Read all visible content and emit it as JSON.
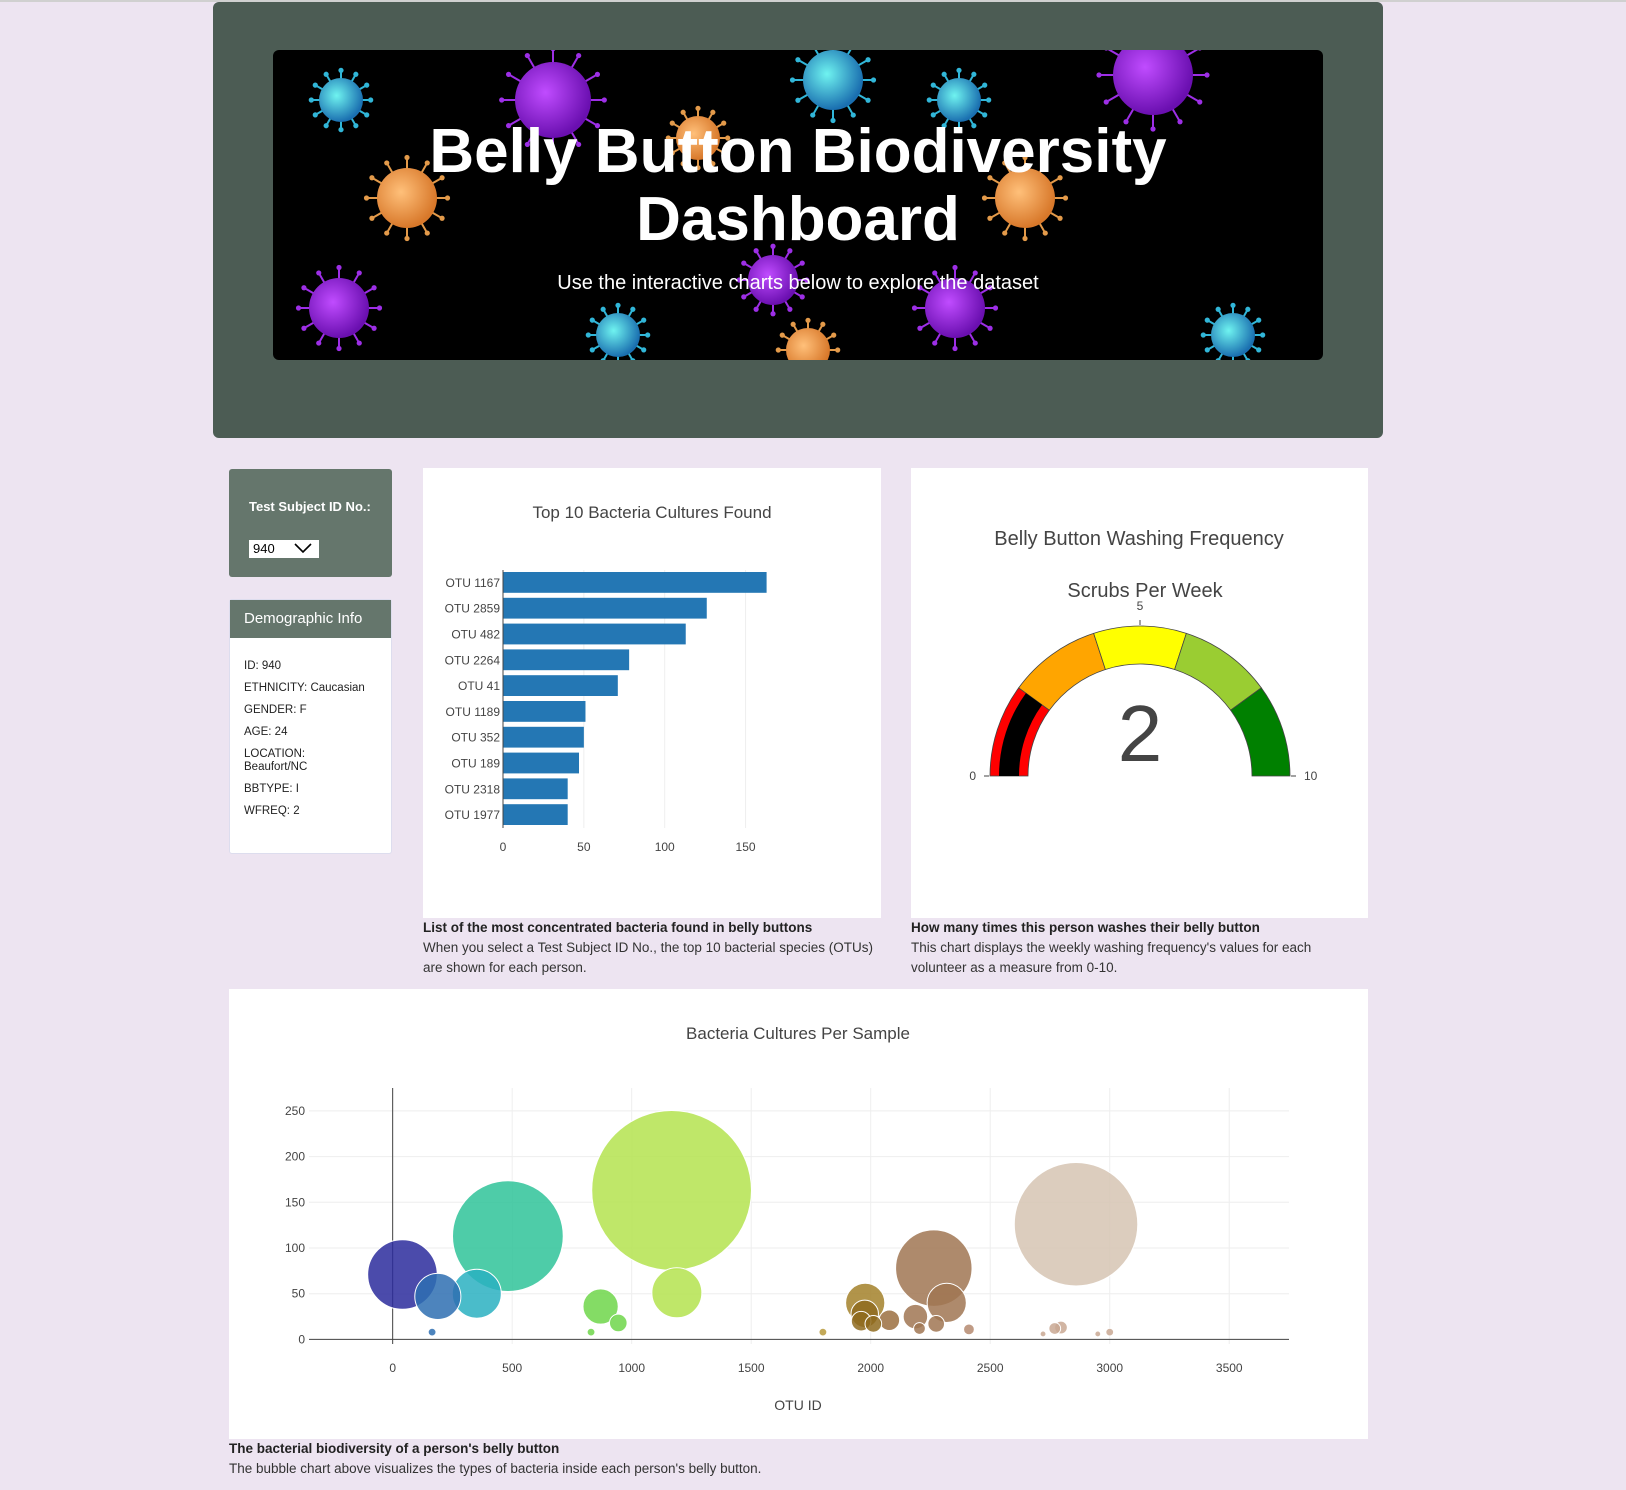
{
  "header": {
    "title_line1": "Belly Button Biodiversity",
    "title_line2": "Dashboard",
    "subtitle": "Use the interactive charts below to explore the dataset"
  },
  "selector": {
    "label": "Test Subject ID No.:",
    "value": "940"
  },
  "demographics": {
    "title": "Demographic Info",
    "lines": [
      "ID: 940",
      "ETHNICITY: Caucasian",
      "GENDER: F",
      "AGE: 24",
      "LOCATION: Beaufort/NC",
      "BBTYPE: I",
      "WFREQ: 2"
    ]
  },
  "bar_caption": {
    "title": "List of the most concentrated bacteria found in belly buttons",
    "text": "When you select a Test Subject ID No., the top 10 bacterial species (OTUs) are shown for each person."
  },
  "gauge_caption": {
    "title": "How many times this person washes their belly button",
    "text": "This chart displays the weekly washing frequency's values for each volunteer as a measure from 0-10."
  },
  "bubble_caption": {
    "title": "The bacterial biodiversity of a person's belly button",
    "text": "The bubble chart above visualizes the types of bacteria inside each person's belly button."
  },
  "colors": {
    "bar": "#2477b4",
    "gauge_steps": [
      "#ff0000",
      "#ffa500",
      "#ffff00",
      "#9acd32",
      "#008000"
    ],
    "gauge_bar": "#000000"
  },
  "chart_data": [
    {
      "type": "bar",
      "orientation": "horizontal",
      "title": "Top 10 Bacteria Cultures Found",
      "categories": [
        "OTU 1167",
        "OTU 2859",
        "OTU 482",
        "OTU 2264",
        "OTU 41",
        "OTU 1189",
        "OTU 352",
        "OTU 189",
        "OTU 2318",
        "OTU 1977"
      ],
      "values": [
        163,
        126,
        113,
        78,
        71,
        51,
        50,
        47,
        40,
        40
      ],
      "xlim": [
        0,
        175
      ],
      "xticks": [
        0,
        50,
        100,
        150
      ],
      "grid": true
    },
    {
      "type": "gauge",
      "title": "Belly Button Washing Frequency",
      "subtitle": "Scrubs Per Week",
      "value": 2,
      "range": [
        0,
        10
      ],
      "tick_labels": [
        "0",
        "5",
        "10"
      ],
      "steps": [
        [
          0,
          2
        ],
        [
          2,
          4
        ],
        [
          4,
          6
        ],
        [
          6,
          8
        ],
        [
          8,
          10
        ]
      ]
    },
    {
      "type": "scatter",
      "title": "Bacteria Cultures Per Sample",
      "xlabel": "OTU ID",
      "xlim": [
        -350,
        3750
      ],
      "ylim": [
        -5,
        275
      ],
      "xticks": [
        0,
        500,
        1000,
        1500,
        2000,
        2500,
        3000,
        3500
      ],
      "yticks": [
        0,
        50,
        100,
        150,
        200,
        250
      ],
      "grid": true,
      "points": [
        {
          "x": 41,
          "y": 71,
          "color": "#2c2c9c"
        },
        {
          "x": 189,
          "y": 47,
          "color": "#2e6fb2"
        },
        {
          "x": 165,
          "y": 8,
          "color": "#2e6fb2"
        },
        {
          "x": 352,
          "y": 50,
          "color": "#2ab0c1"
        },
        {
          "x": 482,
          "y": 113,
          "color": "#2fc399"
        },
        {
          "x": 870,
          "y": 36,
          "color": "#6fd64a"
        },
        {
          "x": 944,
          "y": 18,
          "color": "#6fd64a"
        },
        {
          "x": 830,
          "y": 8,
          "color": "#6fd64a"
        },
        {
          "x": 1167,
          "y": 163,
          "color": "#b4e34f"
        },
        {
          "x": 1189,
          "y": 51,
          "color": "#b4e34f"
        },
        {
          "x": 1800,
          "y": 8,
          "color": "#b89a3c"
        },
        {
          "x": 1977,
          "y": 40,
          "color": "#a3812a"
        },
        {
          "x": 1975,
          "y": 28,
          "color": "#8f6b1f"
        },
        {
          "x": 1960,
          "y": 20,
          "color": "#8f6b1f"
        },
        {
          "x": 2011,
          "y": 17,
          "color": "#8f6b1f"
        },
        {
          "x": 2078,
          "y": 21,
          "color": "#9b6f3f"
        },
        {
          "x": 2264,
          "y": 78,
          "color": "#a07552"
        },
        {
          "x": 2318,
          "y": 40,
          "color": "#a07552"
        },
        {
          "x": 2187,
          "y": 25,
          "color": "#a07552"
        },
        {
          "x": 2204,
          "y": 12,
          "color": "#a07552"
        },
        {
          "x": 2274,
          "y": 17,
          "color": "#a07552"
        },
        {
          "x": 2411,
          "y": 11,
          "color": "#b58a70"
        },
        {
          "x": 2859,
          "y": 126,
          "color": "#d6c4b3"
        },
        {
          "x": 2770,
          "y": 12,
          "color": "#c9a893"
        },
        {
          "x": 2796,
          "y": 13,
          "color": "#c9a893"
        },
        {
          "x": 2721,
          "y": 6,
          "color": "#c9a893"
        },
        {
          "x": 2950,
          "y": 6,
          "color": "#c9a893"
        },
        {
          "x": 3000,
          "y": 8,
          "color": "#c9a893"
        }
      ]
    }
  ]
}
